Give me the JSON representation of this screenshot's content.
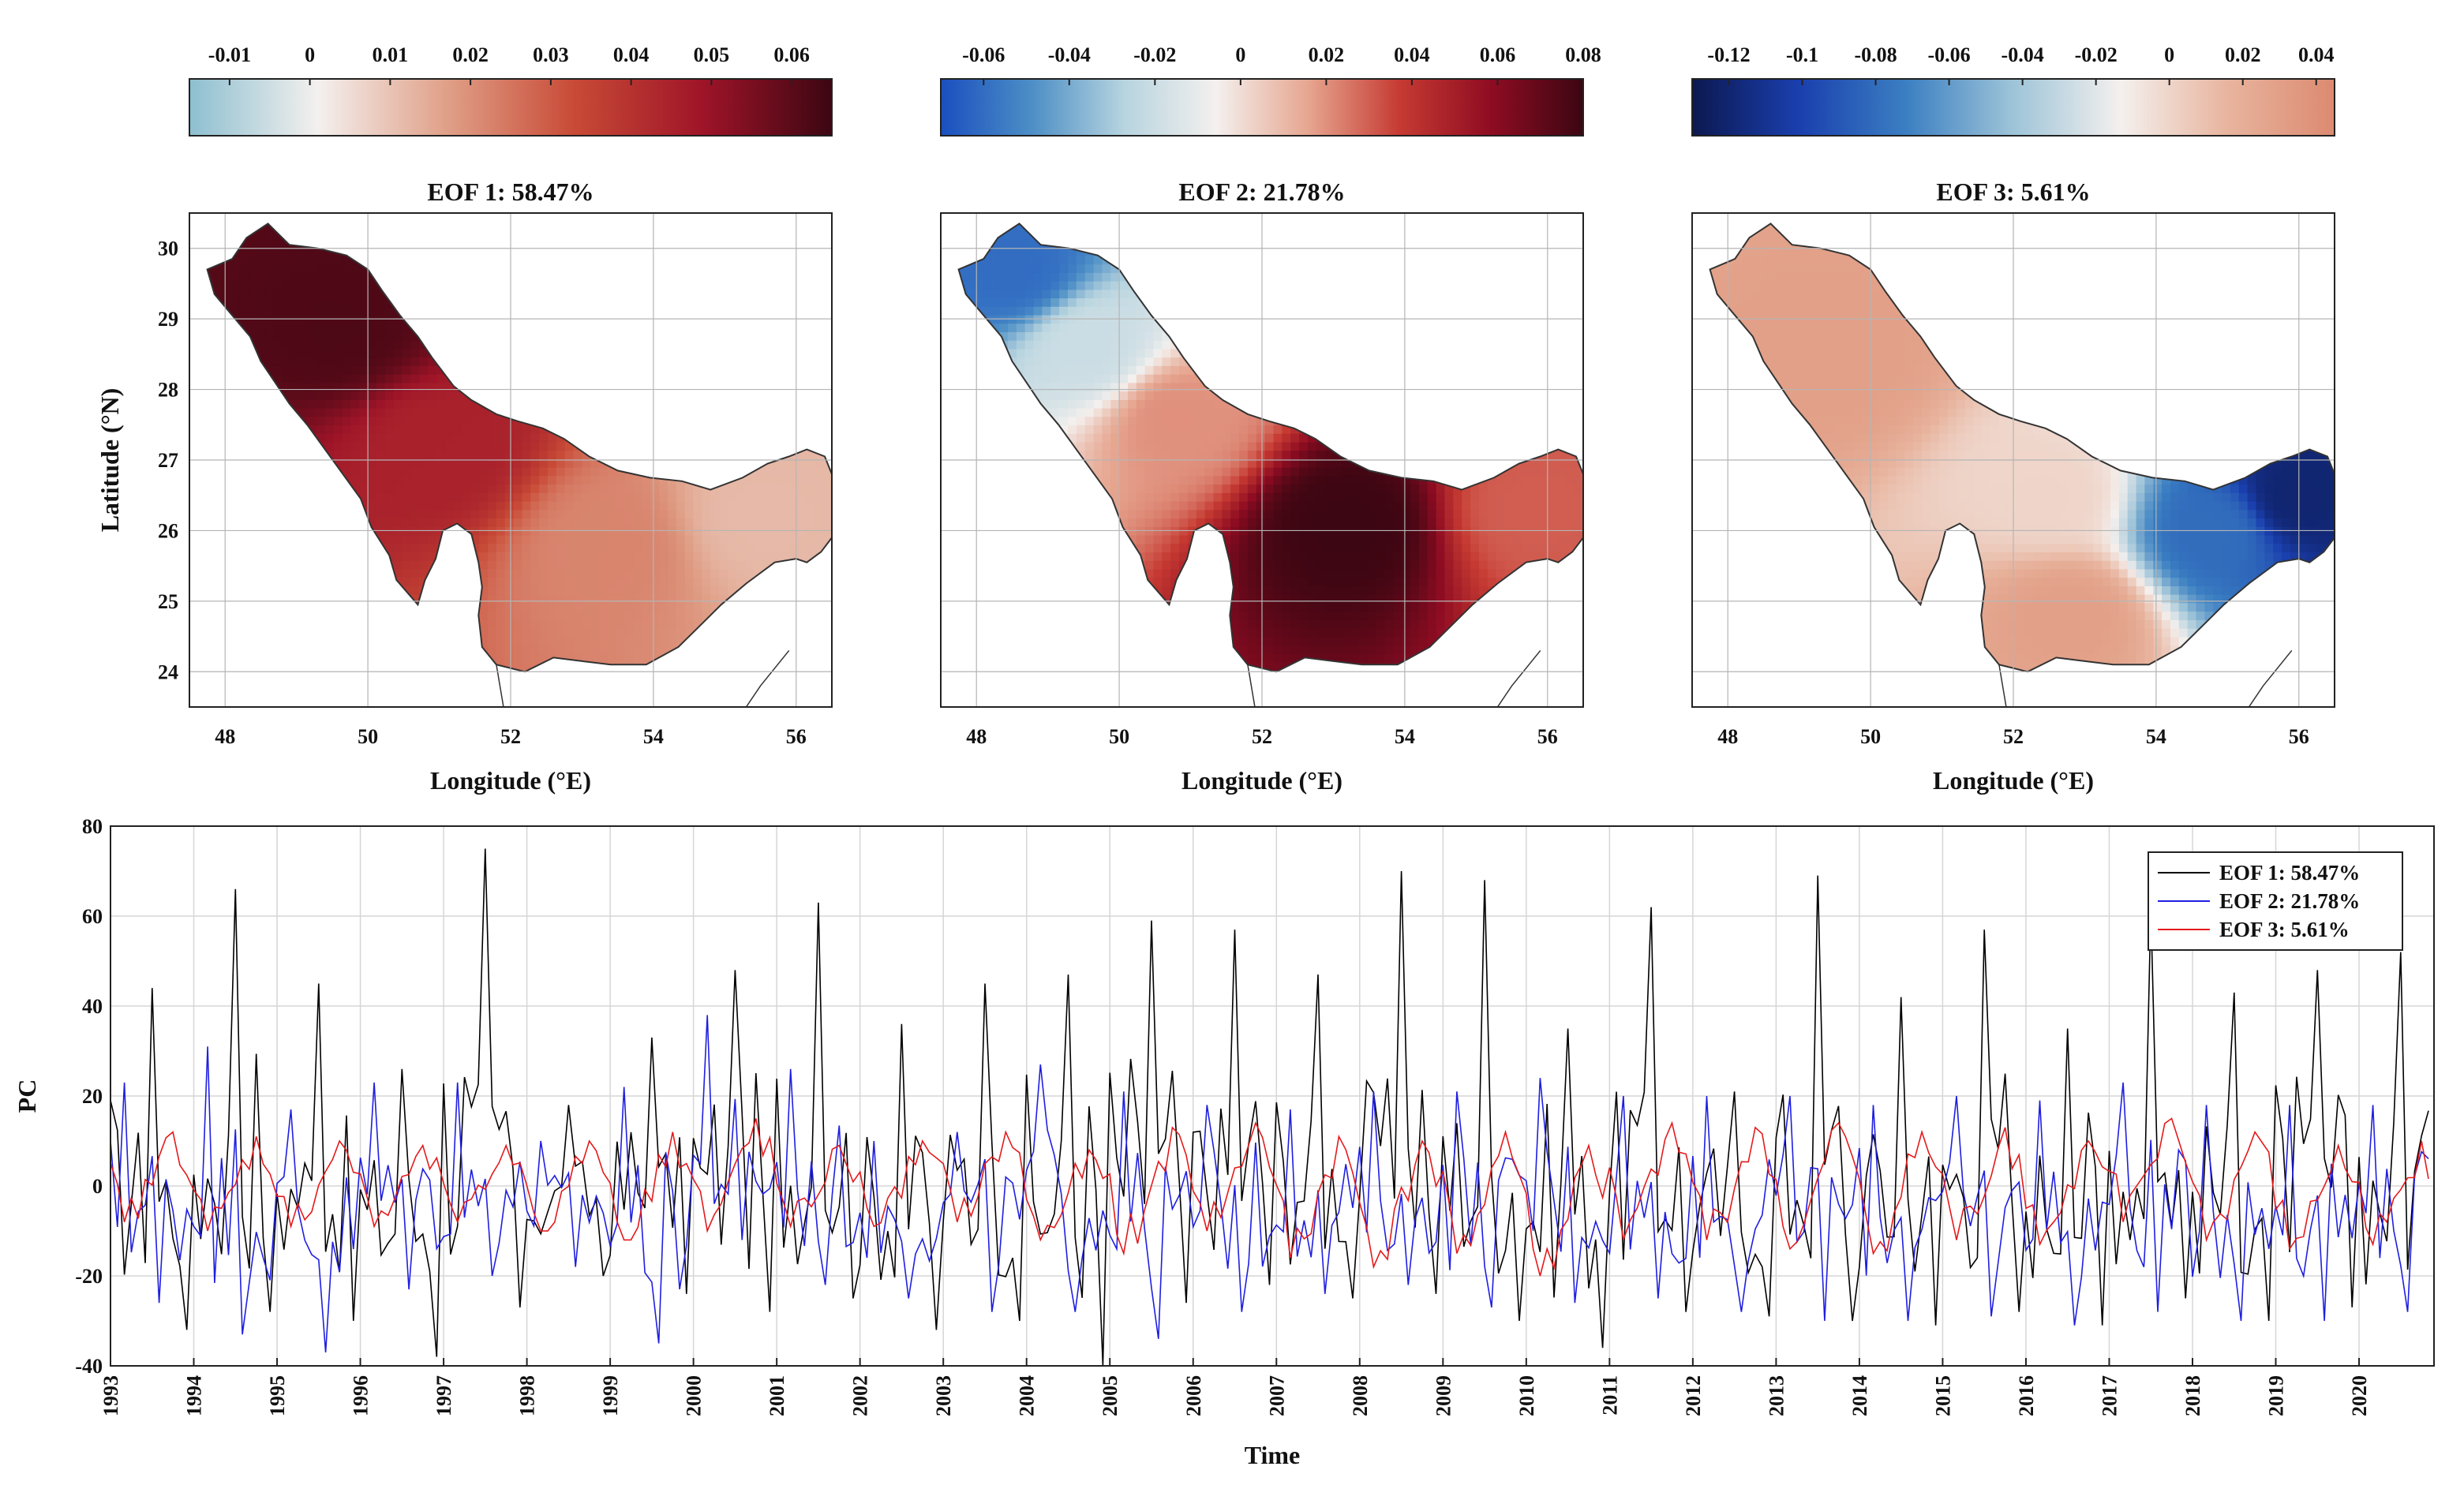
{
  "chart_data": [
    {
      "type": "heatmap",
      "title": "EOF 1: 58.47%",
      "xlabel": "Longitude (°E)",
      "ylabel": "Latitude (°N)",
      "xlim": [
        47.5,
        56.5
      ],
      "ylim": [
        23.5,
        30.5
      ],
      "xticks": [
        48,
        50,
        52,
        54,
        56
      ],
      "yticks": [
        24,
        25,
        26,
        27,
        28,
        29,
        30
      ],
      "grid": true,
      "colorbar": {
        "placement": "top",
        "range": [
          -0.015,
          0.065
        ],
        "ticks": [
          -0.01,
          0,
          0.01,
          0.02,
          0.03,
          0.04,
          0.05,
          0.06
        ],
        "tick_labels": [
          "-0.01",
          "0",
          "0.01",
          "0.02",
          "0.03",
          "0.04",
          "0.05",
          "0.06"
        ],
        "colors": [
          "#8dbfd0",
          "#f4f0ee",
          "#e0a088",
          "#c84a36",
          "#9e1428",
          "#3c0612"
        ]
      },
      "field_peaks": [
        {
          "lon": 49.6,
          "lat": 28.9,
          "value": 0.062
        },
        {
          "lon": 51.0,
          "lat": 27.2,
          "value": 0.045
        },
        {
          "lon": 53.4,
          "lat": 25.8,
          "value": 0.022
        },
        {
          "lon": 55.5,
          "lat": 26.2,
          "value": 0.012
        }
      ]
    },
    {
      "type": "heatmap",
      "title": "EOF 2: 21.78%",
      "xlabel": "Longitude (°E)",
      "xlim": [
        47.5,
        56.5
      ],
      "ylim": [
        23.5,
        30.5
      ],
      "xticks": [
        48,
        50,
        52,
        54,
        56
      ],
      "grid": true,
      "colorbar": {
        "placement": "top",
        "range": [
          -0.07,
          0.08
        ],
        "ticks": [
          -0.06,
          -0.04,
          -0.02,
          0,
          0.02,
          0.04,
          0.06,
          0.08
        ],
        "tick_labels": [
          "-0.06",
          "-0.04",
          "-0.02",
          "0",
          "0.02",
          "0.04",
          "0.06",
          "0.08"
        ],
        "colors": [
          "#1a4fbf",
          "#4d8fc6",
          "#b7d4df",
          "#f4f0ee",
          "#e6a690",
          "#c63a32",
          "#8e0c22",
          "#3c0612"
        ]
      },
      "field_peaks": [
        {
          "lon": 48.5,
          "lat": 29.7,
          "value": -0.06
        },
        {
          "lon": 49.6,
          "lat": 28.6,
          "value": -0.02
        },
        {
          "lon": 50.8,
          "lat": 27.6,
          "value": 0.02
        },
        {
          "lon": 53.2,
          "lat": 26.1,
          "value": 0.08
        },
        {
          "lon": 55.8,
          "lat": 26.3,
          "value": 0.03
        }
      ]
    },
    {
      "type": "heatmap",
      "title": "EOF 3: 5.61%",
      "xlabel": "Longitude (°E)",
      "xlim": [
        47.5,
        56.5
      ],
      "ylim": [
        23.5,
        30.5
      ],
      "xticks": [
        48,
        50,
        52,
        54,
        56
      ],
      "grid": true,
      "colorbar": {
        "placement": "top",
        "range": [
          -0.13,
          0.045
        ],
        "ticks": [
          -0.12,
          -0.1,
          -0.08,
          -0.06,
          -0.04,
          -0.02,
          0,
          0.02,
          0.04
        ],
        "tick_labels": [
          "-0.12",
          "-0.1",
          "-0.08",
          "-0.06",
          "-0.04",
          "-0.02",
          "0",
          "0.02",
          "0.04"
        ],
        "colors": [
          "#0c1850",
          "#1a3fae",
          "#3b7fc2",
          "#9ec4d8",
          "#f4f0ee",
          "#e8b49e",
          "#dc8a70"
        ]
      },
      "field_peaks": [
        {
          "lon": 49.5,
          "lat": 28.5,
          "value": 0.03
        },
        {
          "lon": 52.8,
          "lat": 24.8,
          "value": 0.03
        },
        {
          "lon": 52.5,
          "lat": 26.5,
          "value": 0.0
        },
        {
          "lon": 54.8,
          "lat": 26.0,
          "value": -0.08
        },
        {
          "lon": 56.0,
          "lat": 26.5,
          "value": -0.12
        }
      ]
    },
    {
      "type": "line",
      "xlabel": "Time",
      "ylabel": "PC",
      "xlim": [
        1993,
        2020.9
      ],
      "ylim": [
        -40,
        80
      ],
      "yticks": [
        -40,
        -20,
        0,
        20,
        40,
        60,
        80
      ],
      "xticks": [
        1993,
        1994,
        1995,
        1996,
        1997,
        1998,
        1999,
        2000,
        2001,
        2002,
        2003,
        2004,
        2005,
        2006,
        2007,
        2008,
        2009,
        2010,
        2011,
        2012,
        2013,
        2014,
        2015,
        2016,
        2017,
        2018,
        2019,
        2020
      ],
      "grid": true,
      "legend": "top-right",
      "start_year": 1993,
      "step_per_year": 12,
      "series": [
        {
          "name": "EOF 1: 58.47%",
          "color": "#000000",
          "annual_peaks": [
            44,
            66,
            45,
            26,
            75,
            18,
            33,
            48,
            63,
            36,
            45,
            47,
            59,
            57,
            47,
            70,
            68,
            35,
            62,
            21,
            69,
            42,
            57,
            35,
            62,
            43,
            48,
            52
          ],
          "annual_troughs": [
            -32,
            -28,
            -30,
            -38,
            -27,
            -20,
            -24,
            -28,
            -25,
            -32,
            -30,
            -40,
            -26,
            -22,
            -25,
            -24,
            -30,
            -36,
            -28,
            -29,
            -30,
            -31,
            -28,
            -31,
            -25,
            -30,
            -27,
            -32
          ]
        },
        {
          "name": "EOF 2: 21.78%",
          "color": "#1f1fe0",
          "annual_peaks": [
            23,
            31,
            17,
            23,
            23,
            10,
            22,
            38,
            26,
            10,
            12,
            27,
            21,
            18,
            17,
            21,
            21,
            24,
            20,
            20,
            20,
            18,
            20,
            19,
            23,
            18,
            18,
            18
          ],
          "annual_troughs": [
            -26,
            -33,
            -37,
            -23,
            -20,
            -18,
            -35,
            -12,
            -22,
            -25,
            -28,
            -28,
            -34,
            -28,
            -24,
            -22,
            -27,
            -26,
            -25,
            -28,
            -30,
            -30,
            -29,
            -31,
            -28,
            -30,
            -30,
            -28
          ]
        },
        {
          "name": "EOF 3: 5.61%",
          "color": "#e41a1c",
          "annual_peaks": [
            12,
            11,
            10,
            9,
            9,
            10,
            12,
            15,
            9,
            10,
            12,
            8,
            13,
            14,
            11,
            10,
            12,
            9,
            14,
            13,
            14,
            12,
            13,
            10,
            15,
            12,
            9,
            10
          ],
          "annual_troughs": [
            -8,
            -10,
            -9,
            -9,
            -8,
            -10,
            -12,
            -10,
            -9,
            -9,
            -8,
            -12,
            -15,
            -10,
            -16,
            -18,
            -15,
            -20,
            -12,
            -12,
            -14,
            -15,
            -12,
            -13,
            -8,
            -12,
            -14,
            -13
          ]
        }
      ]
    }
  ]
}
